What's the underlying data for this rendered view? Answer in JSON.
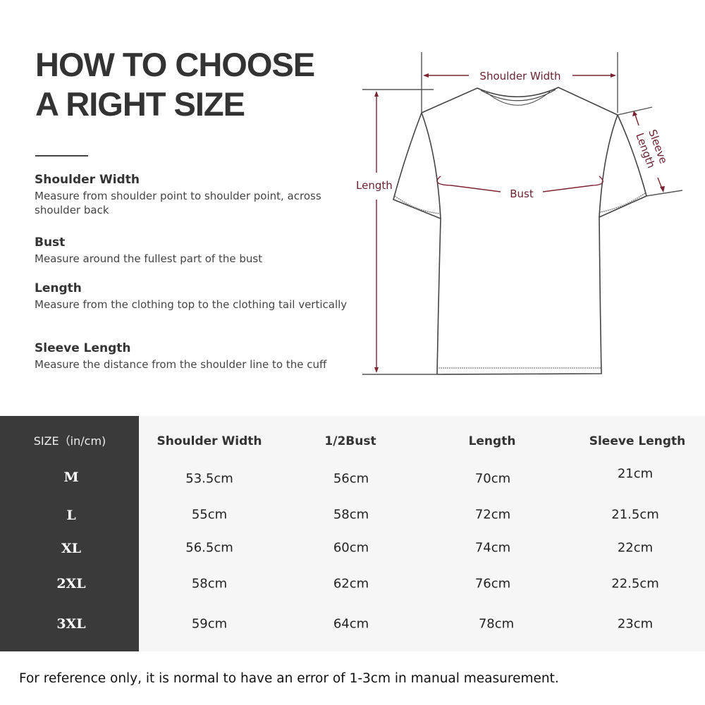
{
  "title": {
    "line1": "HOW TO CHOOSE",
    "line2": "A RIGHT SIZE"
  },
  "definitions": [
    {
      "term": "Shoulder Width",
      "desc": "Measure from shoulder point to shoulder point, across shoulder back"
    },
    {
      "term": "Bust",
      "desc": "Measure around the fullest part of the bust"
    },
    {
      "term": "Length",
      "desc": "Measure from the clothing top to the clothing tail vertically"
    },
    {
      "term": "Sleeve Length",
      "desc": "Measure the distance from the shoulder line to the cuff"
    }
  ],
  "diagram": {
    "shoulder_width": "Shoulder Width",
    "length": "Length",
    "bust": "Bust",
    "sleeve": "Sleeve",
    "sleeve_length": "Length",
    "line_color": "#7a2433"
  },
  "table": {
    "headers": [
      "SIZE（in/cm)",
      "Shoulder Width",
      "1/2Bust",
      "Length",
      "Sleeve Length"
    ],
    "rows": [
      [
        "M",
        "53.5cm",
        "56cm",
        "70cm",
        "21cm"
      ],
      [
        "L",
        "55cm",
        "58cm",
        "72cm",
        "21.5cm"
      ],
      [
        "XL",
        "56.5cm",
        "60cm",
        "74cm",
        "22cm"
      ],
      [
        "2XL",
        "58cm",
        "62cm",
        "76cm",
        "22.5cm"
      ],
      [
        "3XL",
        "59cm",
        "64cm",
        "78cm",
        "23cm"
      ]
    ]
  },
  "footnote": "For reference only, it is normal to have an error of 1-3cm in manual measurement."
}
